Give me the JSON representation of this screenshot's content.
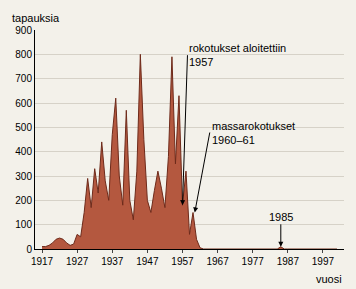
{
  "chart_data": {
    "type": "area",
    "color": "#b4583f",
    "y_label": "tapauksia",
    "x_label": "vuosi",
    "x": [
      1917,
      1918,
      1919,
      1920,
      1921,
      1922,
      1923,
      1924,
      1925,
      1926,
      1927,
      1928,
      1929,
      1930,
      1931,
      1932,
      1933,
      1934,
      1935,
      1936,
      1937,
      1938,
      1939,
      1940,
      1941,
      1942,
      1943,
      1944,
      1945,
      1946,
      1947,
      1948,
      1949,
      1950,
      1951,
      1952,
      1953,
      1954,
      1955,
      1956,
      1957,
      1958,
      1959,
      1960,
      1961,
      1962,
      1963,
      1964,
      1965,
      1966,
      1967,
      1968,
      1969,
      1970,
      1971,
      1972,
      1973,
      1974,
      1975,
      1976,
      1977,
      1978,
      1979,
      1980,
      1981,
      1982,
      1983,
      1984,
      1985,
      1986,
      1987,
      1988,
      1989,
      1990,
      1991,
      1992,
      1993,
      1994,
      1995,
      1996,
      1997,
      1998,
      1999,
      2000,
      2001
    ],
    "values": [
      10,
      10,
      15,
      25,
      40,
      45,
      40,
      25,
      15,
      20,
      60,
      50,
      150,
      290,
      170,
      330,
      230,
      440,
      280,
      200,
      470,
      620,
      300,
      180,
      570,
      200,
      120,
      320,
      800,
      450,
      200,
      150,
      240,
      320,
      250,
      170,
      380,
      790,
      350,
      630,
      180,
      320,
      60,
      150,
      40,
      5,
      0,
      0,
      0,
      0,
      0,
      0,
      0,
      0,
      0,
      0,
      0,
      0,
      0,
      0,
      0,
      0,
      0,
      0,
      0,
      0,
      0,
      0,
      9,
      0,
      0,
      0,
      0,
      0,
      0,
      0,
      0,
      0,
      0,
      0,
      0,
      0,
      0,
      0,
      0
    ],
    "xlim": [
      1915,
      2003
    ],
    "xticks": [
      1917,
      1927,
      1937,
      1947,
      1957,
      1967,
      1977,
      1987,
      1997
    ],
    "ylim": [
      0,
      900
    ],
    "yticks": [
      0,
      100,
      200,
      300,
      400,
      500,
      600,
      700,
      800,
      900
    ],
    "grid": true,
    "annotations": [
      {
        "text": [
          "rokotukset aloitettiin",
          "1957"
        ],
        "x": 1957,
        "y": 180
      },
      {
        "text": [
          "massarokotukset",
          "1960–61"
        ],
        "x": 1960.5,
        "y": 150
      },
      {
        "text": [
          "1985"
        ],
        "x": 1985,
        "y": 9
      }
    ]
  }
}
